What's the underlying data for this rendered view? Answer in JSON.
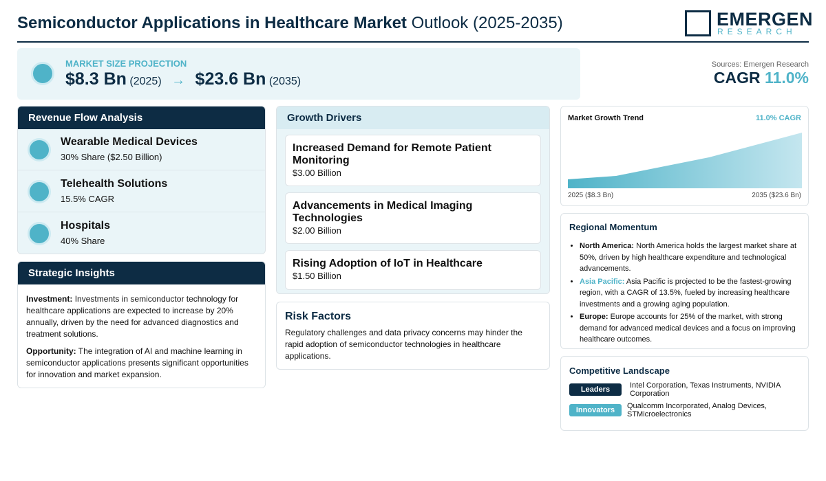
{
  "header": {
    "title_bold": "Semiconductor Applications in Healthcare Market",
    "title_light": "Outlook (2025-2035)",
    "logo": "EMERGEN",
    "logo_sub": "RESEARCH"
  },
  "projection": {
    "label": "MARKET SIZE PROJECTION",
    "start_value": "$8.3 Bn",
    "start_year": "(2025)",
    "end_value": "$23.6 Bn",
    "end_year": "(2035)"
  },
  "sources": "Sources: Emergen Research",
  "cagr": {
    "label": "CAGR",
    "value": "11.0%"
  },
  "revenue_flow": {
    "title": "Revenue Flow Analysis",
    "items": [
      {
        "name": "Wearable Medical Devices",
        "detail": "30% Share ($2.50 Billion)"
      },
      {
        "name": "Telehealth Solutions",
        "detail": "15.5% CAGR"
      },
      {
        "name": "Hospitals",
        "detail": "40% Share"
      }
    ]
  },
  "strategic_insights": {
    "title": "Strategic Insights",
    "items": [
      {
        "label": "Investment:",
        "text": "Investments in semiconductor technology for healthcare applications are expected to increase by 20% annually, driven by the need for advanced diagnostics and treatment solutions."
      },
      {
        "label": "Opportunity:",
        "text": "The integration of AI and machine learning in semiconductor applications presents significant opportunities for innovation and market expansion."
      }
    ]
  },
  "growth_drivers": {
    "title": "Growth Drivers",
    "items": [
      {
        "name": "Increased Demand for Remote Patient Monitoring",
        "value": "$3.00 Billion"
      },
      {
        "name": "Advancements in Medical Imaging Technologies",
        "value": "$2.00 Billion"
      },
      {
        "name": "Rising Adoption of IoT in Healthcare",
        "value": "$1.50 Billion"
      }
    ]
  },
  "risk_factors": {
    "title": "Risk Factors",
    "text": "Regulatory challenges and data privacy concerns may hinder the rapid adoption of semiconductor technologies in healthcare applications."
  },
  "market_growth_trend": {
    "title": "Market Growth Trend",
    "cagr": "11.0% CAGR",
    "start_label": "2025 ($8.3 Bn)",
    "end_label": "2035 ($23.6 Bn)"
  },
  "regional_momentum": {
    "title": "Regional Momentum",
    "items": [
      {
        "region": "North America:",
        "text": "North America holds the largest market share at 50%, driven by high healthcare expenditure and technological advancements."
      },
      {
        "region": "Asia Pacific:",
        "text": "Asia Pacific is projected to be the fastest-growing region, with a CAGR of 13.5%, fueled by increasing healthcare investments and a growing aging population."
      },
      {
        "region": "Europe:",
        "text": "Europe accounts for 25% of the market, with strong demand for advanced medical devices and a focus on improving healthcare outcomes."
      }
    ]
  },
  "competitive_landscape": {
    "title": "Competitive Landscape",
    "items": [
      {
        "tier": "Leaders",
        "companies": "Intel Corporation, Texas Instruments, NVIDIA Corporation"
      },
      {
        "tier": "Innovators",
        "companies": "Qualcomm Incorporated, Analog Devices, STMicroelectronics"
      }
    ]
  }
}
